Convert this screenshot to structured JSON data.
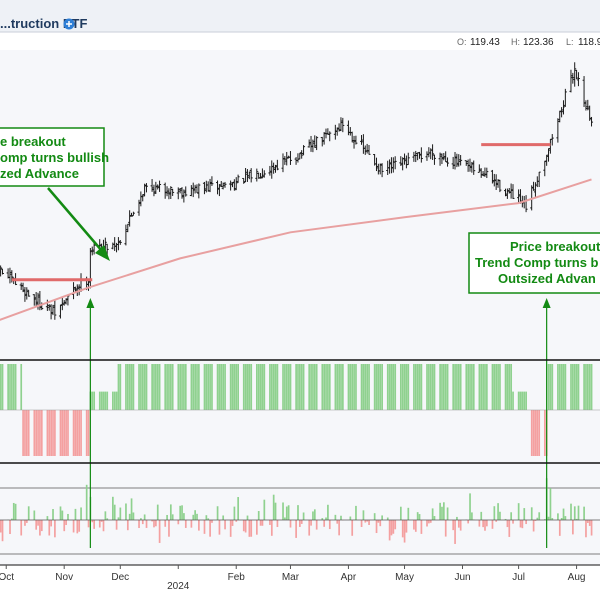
{
  "header": {
    "title": "...truction ETF",
    "info_icon": "plus-circle-icon",
    "ohlc": [
      {
        "key": "O:",
        "value": "119.43"
      },
      {
        "key": "H:",
        "value": "123.36"
      },
      {
        "key": "L:",
        "value": "118.9"
      }
    ]
  },
  "colors": {
    "price_bar": "#1a1a1a",
    "sma": "#e8a0a0",
    "breakout_line": "#e06a6a",
    "trend_positive": "#8fd18f",
    "trend_negative": "#f4a0a0",
    "callout_green": "#138a13",
    "panel_bg": "#f6f7fa"
  },
  "annotations": [
    {
      "lines": [
        "e breakout",
        "omp turns bullish",
        "zed Advance"
      ]
    },
    {
      "lines": [
        "Price breakout",
        "Trend Comp turns b",
        "Outsized Advan"
      ]
    }
  ],
  "chart_data": {
    "type": "bar",
    "x_axis": {
      "months": [
        "Oct",
        "Nov",
        "Dec",
        "2024",
        "Feb",
        "Mar",
        "Apr",
        "May",
        "Jun",
        "Jul",
        "Aug"
      ]
    },
    "price_panel": {
      "segments": [
        {
          "from": "2023-09-25",
          "to": "2023-10-10",
          "start": 91,
          "end": 88
        },
        {
          "from": "2023-10-10",
          "to": "2023-10-27",
          "start": 88,
          "end": 85
        },
        {
          "from": "2023-10-27",
          "to": "2023-11-08",
          "start": 85,
          "end": 88.5
        },
        {
          "from": "2023-11-08",
          "to": "2023-11-14",
          "start": 88.5,
          "end": 89.5
        },
        {
          "from": "2023-11-14",
          "to": "2023-11-30",
          "start": 93,
          "end": 94
        },
        {
          "from": "2023-11-30",
          "to": "2023-12-14",
          "start": 94,
          "end": 101
        },
        {
          "from": "2023-12-14",
          "to": "2024-01-05",
          "start": 101,
          "end": 100.5
        },
        {
          "from": "2024-01-05",
          "to": "2024-01-31",
          "start": 100.5,
          "end": 101.5
        },
        {
          "from": "2024-01-31",
          "to": "2024-03-05",
          "start": 101.5,
          "end": 105
        },
        {
          "from": "2024-03-05",
          "to": "2024-03-29",
          "start": 105,
          "end": 109
        },
        {
          "from": "2024-03-29",
          "to": "2024-04-19",
          "start": 109,
          "end": 103
        },
        {
          "from": "2024-04-19",
          "to": "2024-05-15",
          "start": 103,
          "end": 105.5
        },
        {
          "from": "2024-05-15",
          "to": "2024-06-14",
          "start": 105.5,
          "end": 102.5
        },
        {
          "from": "2024-06-14",
          "to": "2024-07-05",
          "start": 102.5,
          "end": 98.5
        },
        {
          "from": "2024-07-05",
          "to": "2024-07-17",
          "start": 98.5,
          "end": 106
        },
        {
          "from": "2024-07-17",
          "to": "2024-07-31",
          "start": 106,
          "end": 116
        },
        {
          "from": "2024-07-31",
          "to": "2024-08-09",
          "start": 116,
          "end": 109
        }
      ],
      "sma": [
        {
          "date": "2023-09-25",
          "value": 84
        },
        {
          "date": "2023-11-14",
          "value": 88.3
        },
        {
          "date": "2024-01-02",
          "value": 92
        },
        {
          "date": "2024-03-01",
          "value": 95.3
        },
        {
          "date": "2024-05-01",
          "value": 97.2
        },
        {
          "date": "2024-07-01",
          "value": 99
        },
        {
          "date": "2024-08-09",
          "value": 102
        }
      ],
      "breakout_levels": [
        {
          "from": "2023-10-04",
          "to": "2023-11-16",
          "value": 89.3
        },
        {
          "from": "2024-06-11",
          "to": "2024-07-18",
          "value": 106.4
        }
      ],
      "breakout_dates": [
        "2023-11-15",
        "2024-07-16"
      ]
    },
    "trend_panel": {
      "series": [
        {
          "from": "2023-09-25",
          "to": "2023-10-09",
          "value": 1
        },
        {
          "from": "2023-10-10",
          "to": "2023-11-14",
          "value": -1
        },
        {
          "from": "2023-11-15",
          "to": "2023-11-29",
          "value": 0.4
        },
        {
          "from": "2023-11-30",
          "to": "2024-06-27",
          "value": 1
        },
        {
          "from": "2024-06-28",
          "to": "2024-07-05",
          "value": 0.4
        },
        {
          "from": "2024-07-08",
          "to": "2024-07-16",
          "value": -1
        },
        {
          "from": "2024-07-17",
          "to": "2024-08-09",
          "value": 1
        }
      ]
    },
    "advance_panel": {
      "spikes": [
        {
          "date": "2023-11-13",
          "value": 3.2
        },
        {
          "date": "2023-11-15",
          "value": 2.1
        },
        {
          "date": "2024-07-16",
          "value": 3.8
        },
        {
          "date": "2024-07-18",
          "value": 2.9
        }
      ]
    }
  }
}
